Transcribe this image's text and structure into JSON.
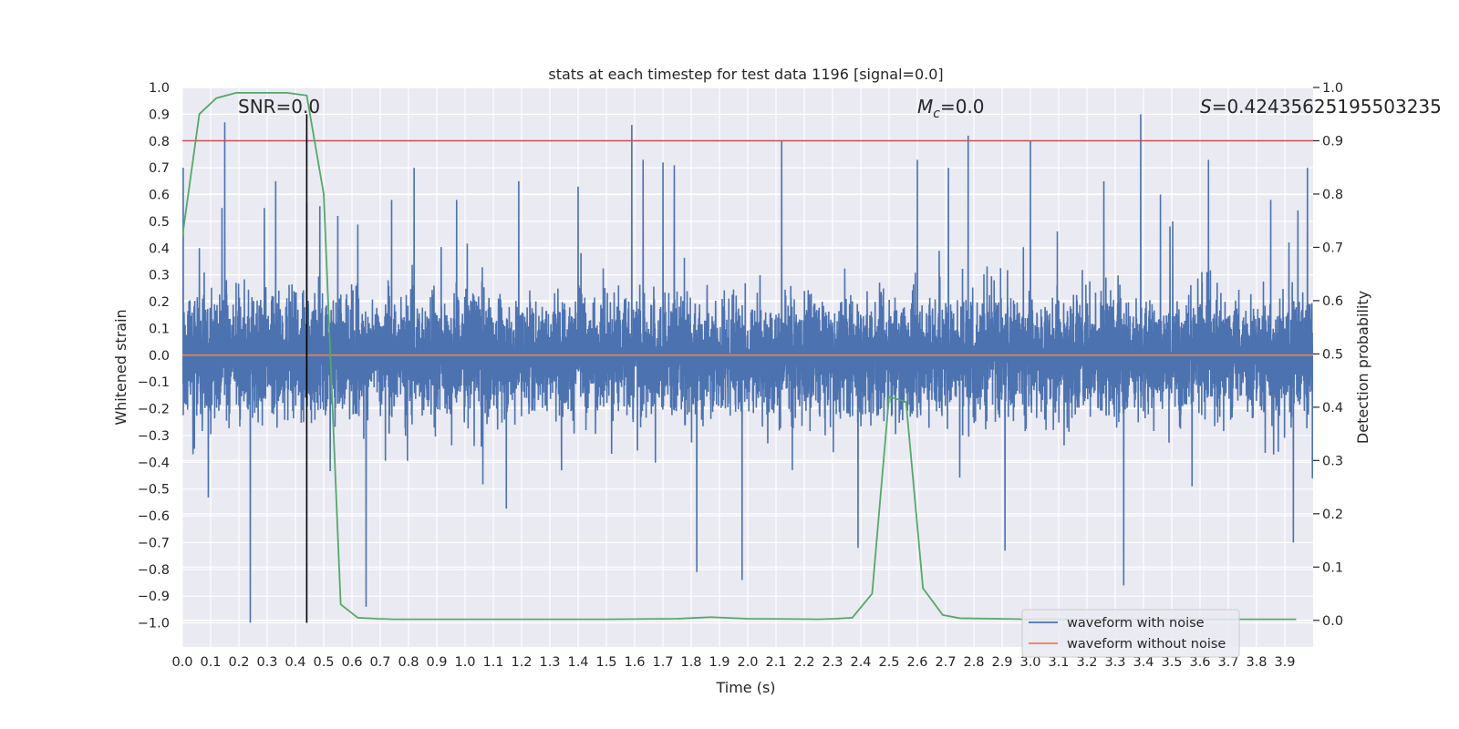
{
  "chart_data": {
    "type": "line",
    "title": "stats at each timestep for test data 1196 [signal=0.0]",
    "xlabel": "Time (s)",
    "ylabel": "Whitened strain",
    "y2label": "Detection probability",
    "xlim": [
      0.0,
      4.0
    ],
    "ylim": [
      -1.09,
      1.0
    ],
    "y2lim": [
      -0.05,
      1.0
    ],
    "x_ticks": [
      "0.0",
      "0.1",
      "0.2",
      "0.3",
      "0.4",
      "0.5",
      "0.6",
      "0.7",
      "0.8",
      "0.9",
      "1.0",
      "1.1",
      "1.2",
      "1.3",
      "1.4",
      "1.5",
      "1.6",
      "1.7",
      "1.8",
      "1.9",
      "2.0",
      "2.1",
      "2.2",
      "2.3",
      "2.4",
      "2.5",
      "2.6",
      "2.7",
      "2.8",
      "2.9",
      "3.0",
      "3.1",
      "3.2",
      "3.3",
      "3.4",
      "3.5",
      "3.6",
      "3.7",
      "3.8",
      "3.9"
    ],
    "y_ticks": [
      "1.0",
      "0.9",
      "0.8",
      "0.7",
      "0.6",
      "0.5",
      "0.4",
      "0.3",
      "0.2",
      "0.1",
      "0.0",
      "−0.1",
      "−0.2",
      "−0.3",
      "−0.4",
      "−0.5",
      "−0.6",
      "−0.7",
      "−0.8",
      "−0.9",
      "−1.0"
    ],
    "y2_ticks": [
      "1.0",
      "0.9",
      "0.8",
      "0.7",
      "0.6",
      "0.5",
      "0.4",
      "0.3",
      "0.2",
      "0.1",
      "0.0"
    ],
    "grid": true,
    "legend_position": "bottom-right",
    "annotations": {
      "snr": "SNR=0.0",
      "mc_symbol": "M",
      "mc_sub": "c",
      "mc_value": "=0.0",
      "s_symbol": "S",
      "s_value": "=0.42435625195503235"
    },
    "vertical_line_x": 0.44,
    "threshold_probability": 0.9,
    "series": [
      {
        "name": "waveform with noise",
        "axis": "left",
        "color": "#4c72b0",
        "sample_rate": 2048,
        "noise_envelope": 0.25,
        "peaks": [
          [
            0.06,
            0.4
          ],
          [
            0.14,
            0.55
          ],
          [
            0.15,
            0.87
          ],
          [
            0.24,
            -1.0
          ],
          [
            0.29,
            0.55
          ],
          [
            0.33,
            0.65
          ],
          [
            0.44,
            0.57
          ],
          [
            0.55,
            0.52
          ],
          [
            0.65,
            -0.94
          ],
          [
            0.74,
            0.58
          ],
          [
            0.82,
            0.7
          ],
          [
            0.97,
            0.58
          ],
          [
            1.19,
            0.65
          ],
          [
            1.4,
            0.63
          ],
          [
            1.59,
            0.86
          ],
          [
            1.63,
            0.73
          ],
          [
            1.7,
            0.72
          ],
          [
            1.74,
            0.71
          ],
          [
            1.82,
            -0.81
          ],
          [
            1.98,
            0.72
          ],
          [
            1.98,
            -0.84
          ],
          [
            2.12,
            0.8
          ],
          [
            2.39,
            0.7
          ],
          [
            2.39,
            -0.72
          ],
          [
            2.6,
            0.73
          ],
          [
            2.71,
            0.7
          ],
          [
            2.78,
            0.82
          ],
          [
            2.91,
            -0.73
          ],
          [
            3.0,
            0.8
          ],
          [
            3.26,
            0.65
          ],
          [
            3.33,
            -0.86
          ],
          [
            3.39,
            0.9
          ],
          [
            3.46,
            0.6
          ],
          [
            3.63,
            0.73
          ],
          [
            3.85,
            0.58
          ],
          [
            3.93,
            -0.7
          ]
        ]
      },
      {
        "name": "waveform without noise",
        "axis": "left",
        "color": "#dd8452",
        "values": [
          0.0
        ]
      },
      {
        "name": "Detection probability",
        "axis": "right",
        "color": "#55a868",
        "x": [
          0.0,
          0.06,
          0.12,
          0.19,
          0.25,
          0.31,
          0.37,
          0.44,
          0.5,
          0.56,
          0.62,
          0.69,
          0.75,
          0.81,
          0.87,
          0.94,
          1.0,
          1.25,
          1.5,
          1.75,
          1.87,
          2.0,
          2.25,
          2.31,
          2.37,
          2.44,
          2.5,
          2.56,
          2.62,
          2.69,
          2.75,
          3.0,
          3.5,
          3.94
        ],
        "values": [
          0.72,
          0.95,
          0.98,
          0.99,
          0.99,
          0.99,
          0.99,
          0.985,
          0.8,
          0.03,
          0.005,
          0.003,
          0.002,
          0.002,
          0.002,
          0.002,
          0.002,
          0.002,
          0.002,
          0.003,
          0.006,
          0.003,
          0.002,
          0.003,
          0.005,
          0.05,
          0.42,
          0.41,
          0.06,
          0.01,
          0.004,
          0.002,
          0.002,
          0.002
        ]
      }
    ]
  }
}
